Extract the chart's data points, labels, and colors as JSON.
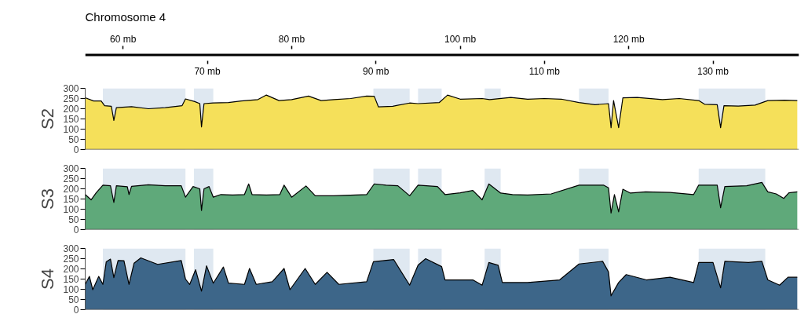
{
  "chart_data": [
    {
      "type": "area",
      "title": "Chromosome 4",
      "ylabel": "S2",
      "xlim": [
        55.5,
        140.2
      ],
      "ylim": [
        0,
        300
      ],
      "yticks": [
        0,
        50,
        100,
        150,
        200,
        250,
        300
      ],
      "x2lim": [
        55.5,
        140.2
      ],
      "x2ticks": [
        {
          "value": 60,
          "label": "60 mb"
        },
        {
          "value": 80,
          "label": "80 mb"
        },
        {
          "value": 100,
          "label": "100 mb"
        },
        {
          "value": 120,
          "label": "120 mb"
        }
      ],
      "xticks": [
        {
          "value": 70,
          "label": "70 mb"
        },
        {
          "value": 90,
          "label": "90 mb"
        },
        {
          "value": 110,
          "label": "110 mb"
        },
        {
          "value": 130,
          "label": "130 mb"
        }
      ],
      "grid": false,
      "bands": [
        {
          "axis": "x",
          "from": 57.6,
          "to": 67.4,
          "color": "#dfe8f1"
        },
        {
          "axis": "x",
          "from": 68.4,
          "to": 70.7,
          "color": "#dfe8f1"
        },
        {
          "axis": "x",
          "from": 89.7,
          "to": 94.0,
          "color": "#dfe8f1"
        },
        {
          "axis": "x",
          "from": 95.0,
          "to": 97.8,
          "color": "#dfe8f1"
        },
        {
          "axis": "x",
          "from": 102.9,
          "to": 104.8,
          "color": "#dfe8f1"
        },
        {
          "axis": "x",
          "from": 114.1,
          "to": 117.6,
          "color": "#dfe8f1"
        },
        {
          "axis": "x",
          "from": 128.3,
          "to": 136.2,
          "color": "#dfe8f1"
        }
      ],
      "series": [
        {
          "color": "#f5e05a",
          "x": [
            55.5,
            56.5,
            57.4,
            57.8,
            58.6,
            58.9,
            59.2,
            61,
            63,
            65,
            67,
            67.4,
            68.5,
            69.1,
            69.3,
            69.6,
            70.7,
            72.5,
            74,
            76,
            77,
            78.5,
            80,
            82,
            83.5,
            85,
            87,
            88.9,
            89.8,
            90.3,
            92,
            94,
            95,
            97.5,
            98.5,
            100,
            102.6,
            103.5,
            106,
            108,
            110,
            112,
            114.1,
            116,
            117.6,
            117.9,
            118.2,
            118.8,
            119.3,
            121,
            124,
            126,
            128.3,
            129,
            130.5,
            130.9,
            131.3,
            133,
            135,
            136.5,
            138.5,
            140
          ],
          "values": [
            254,
            238,
            238,
            215,
            212,
            143,
            205,
            210,
            200,
            205,
            215,
            248,
            235,
            225,
            111,
            225,
            228,
            230,
            238,
            245,
            267,
            240,
            245,
            262,
            240,
            245,
            250,
            262,
            261,
            209,
            212,
            228,
            225,
            230,
            267,
            247,
            250,
            245,
            255,
            247,
            250,
            247,
            230,
            220,
            225,
            107,
            240,
            107,
            253,
            255,
            245,
            250,
            240,
            222,
            220,
            107,
            215,
            213,
            218,
            240,
            242,
            240
          ]
        }
      ]
    },
    {
      "type": "area",
      "ylabel": "S3",
      "xlim": [
        55.5,
        140.2
      ],
      "ylim": [
        0,
        300
      ],
      "yticks": [
        0,
        50,
        100,
        150,
        200,
        250,
        300
      ],
      "tick_labels": "y",
      "grid": false,
      "bands": [
        {
          "axis": "x",
          "from": 57.6,
          "to": 67.4,
          "color": "#dfe8f1"
        },
        {
          "axis": "x",
          "from": 68.4,
          "to": 70.7,
          "color": "#dfe8f1"
        },
        {
          "axis": "x",
          "from": 89.7,
          "to": 94.0,
          "color": "#dfe8f1"
        },
        {
          "axis": "x",
          "from": 95.0,
          "to": 97.8,
          "color": "#dfe8f1"
        },
        {
          "axis": "x",
          "from": 102.9,
          "to": 104.8,
          "color": "#dfe8f1"
        },
        {
          "axis": "x",
          "from": 114.1,
          "to": 117.6,
          "color": "#dfe8f1"
        },
        {
          "axis": "x",
          "from": 128.3,
          "to": 136.2,
          "color": "#dfe8f1"
        }
      ],
      "series": [
        {
          "color": "#5fa97a",
          "x": [
            55.5,
            56.2,
            56.8,
            57.6,
            58.5,
            58.9,
            59.2,
            60.5,
            60.7,
            61.0,
            63,
            65,
            66.9,
            67.4,
            68.3,
            69.1,
            69.3,
            69.6,
            70.2,
            70.7,
            71.6,
            73,
            74.4,
            74.9,
            75.3,
            77,
            78.6,
            79.1,
            80,
            81.7,
            82.8,
            85,
            88.9,
            89.8,
            91.2,
            92.6,
            94.0,
            95.0,
            97.3,
            98.2,
            100,
            101.5,
            102.6,
            103.4,
            104.8,
            106.2,
            108,
            110.8,
            114.1,
            117,
            117.6,
            117.9,
            118.3,
            118.8,
            119.3,
            120.2,
            122,
            124.9,
            127.7,
            128.3,
            130.5,
            130.9,
            131.4,
            134,
            135.8,
            136.5,
            137.5,
            138.4,
            139,
            140
          ],
          "values": [
            172,
            146,
            180,
            218,
            215,
            133,
            215,
            210,
            172,
            212,
            220,
            215,
            215,
            159,
            211,
            200,
            94,
            200,
            211,
            159,
            172,
            170,
            172,
            224,
            172,
            170,
            172,
            218,
            159,
            214,
            166,
            166,
            172,
            224,
            218,
            215,
            166,
            218,
            211,
            172,
            180,
            192,
            146,
            224,
            179,
            172,
            170,
            175,
            218,
            218,
            205,
            81,
            172,
            87,
            198,
            179,
            185,
            182,
            172,
            218,
            218,
            107,
            211,
            215,
            231,
            185,
            175,
            153,
            180,
            185
          ]
        }
      ]
    },
    {
      "type": "area",
      "ylabel": "S4",
      "xlim": [
        55.5,
        140.2
      ],
      "ylim": [
        0,
        300
      ],
      "yticks": [
        0,
        50,
        100,
        150,
        200,
        250,
        300
      ],
      "tick_labels": "y",
      "grid": false,
      "bands": [
        {
          "axis": "x",
          "from": 57.6,
          "to": 67.4,
          "color": "#dfe8f1"
        },
        {
          "axis": "x",
          "from": 68.4,
          "to": 70.7,
          "color": "#dfe8f1"
        },
        {
          "axis": "x",
          "from": 89.7,
          "to": 94.0,
          "color": "#dfe8f1"
        },
        {
          "axis": "x",
          "from": 95.0,
          "to": 97.8,
          "color": "#dfe8f1"
        },
        {
          "axis": "x",
          "from": 102.9,
          "to": 104.8,
          "color": "#dfe8f1"
        },
        {
          "axis": "x",
          "from": 114.1,
          "to": 117.6,
          "color": "#dfe8f1"
        },
        {
          "axis": "x",
          "from": 128.3,
          "to": 136.2,
          "color": "#dfe8f1"
        }
      ],
      "series": [
        {
          "color": "#3d6689",
          "x": [
            55.5,
            56.0,
            56.4,
            57.1,
            57.6,
            58.0,
            58.5,
            58.9,
            59.4,
            60.1,
            60.7,
            61.3,
            62.1,
            64.1,
            66.9,
            67.4,
            67.9,
            68.6,
            69.3,
            69.9,
            70.7,
            71.9,
            72.5,
            74.4,
            75.0,
            75.8,
            77.7,
            79.1,
            79.8,
            81.6,
            82.8,
            84.2,
            85.6,
            88.9,
            89.7,
            92.1,
            94.0,
            95.0,
            95.9,
            97.8,
            98.2,
            101.5,
            102.6,
            103.4,
            104.5,
            105.0,
            108.0,
            111.8,
            114.1,
            116.9,
            117.6,
            117.9,
            118.8,
            119.7,
            122.1,
            124.9,
            127.7,
            128.3,
            130.0,
            130.9,
            131.4,
            134.2,
            135.8,
            136.5,
            137.9,
            138.9,
            140.0
          ],
          "values": [
            124,
            163,
            98,
            163,
            124,
            235,
            248,
            157,
            241,
            240,
            124,
            228,
            254,
            222,
            241,
            150,
            124,
            196,
            91,
            215,
            130,
            209,
            130,
            124,
            202,
            124,
            137,
            202,
            98,
            202,
            124,
            183,
            124,
            137,
            235,
            246,
            120,
            218,
            250,
            211,
            146,
            146,
            120,
            231,
            218,
            133,
            133,
            146,
            224,
            237,
            185,
            68,
            133,
            172,
            146,
            159,
            133,
            231,
            231,
            107,
            237,
            231,
            237,
            146,
            120,
            159,
            159
          ]
        }
      ]
    }
  ]
}
